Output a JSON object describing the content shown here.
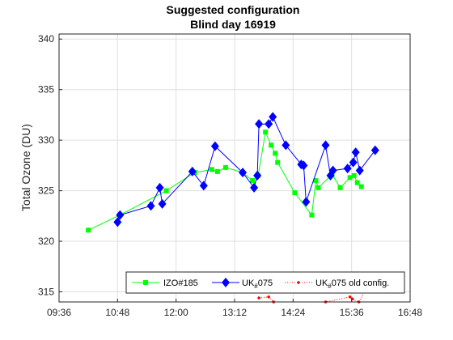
{
  "chart_data": {
    "type": "line",
    "title": "Suggested configuration",
    "subtitle": "Blind day 16919",
    "xlabel": "",
    "ylabel": "Total Ozone (DU)",
    "x_ticks": [
      "09:36",
      "10:48",
      "12:00",
      "13:12",
      "14:24",
      "15:36",
      "16:48"
    ],
    "y_ticks": [
      "315",
      "320",
      "325",
      "330",
      "335",
      "340"
    ],
    "xlim": [
      "09:36",
      "16:48"
    ],
    "ylim": [
      314,
      340.5
    ],
    "grid": true,
    "legend_position": "bottom-right",
    "legend": {
      "izo": "IZO#185",
      "uk_prefix": "UK",
      "uk_sub": "#",
      "uk_suffix": "075",
      "uk_old_suffix": "075 old config."
    },
    "series": [
      {
        "name": "IZO#185",
        "color": "#00ff00",
        "marker": "square",
        "line": "solid",
        "points": [
          [
            "10:12",
            321.1
          ],
          [
            "10:51",
            322.6
          ],
          [
            "11:48",
            325.0
          ],
          [
            "12:23",
            326.8
          ],
          [
            "12:44",
            327.1
          ],
          [
            "12:51",
            326.9
          ],
          [
            "13:01",
            327.3
          ],
          [
            "13:22",
            326.8
          ],
          [
            "13:34",
            326.0
          ],
          [
            "13:41",
            326.5
          ],
          [
            "13:50",
            330.8
          ],
          [
            "13:57",
            329.5
          ],
          [
            "14:02",
            328.7
          ],
          [
            "14:05",
            327.8
          ],
          [
            "14:26",
            324.8
          ],
          [
            "14:47",
            322.6
          ],
          [
            "14:52",
            326.0
          ],
          [
            "14:55",
            325.3
          ],
          [
            "15:12",
            326.6
          ],
          [
            "15:22",
            325.3
          ],
          [
            "15:34",
            326.3
          ],
          [
            "15:39",
            326.5
          ],
          [
            "15:43",
            325.8
          ],
          [
            "15:48",
            325.4
          ]
        ]
      },
      {
        "name": "UK#075",
        "color": "#0000ff",
        "marker": "diamond",
        "line": "solid",
        "points": [
          [
            "10:48",
            321.9
          ],
          [
            "10:51",
            322.6
          ],
          [
            "11:29",
            323.5
          ],
          [
            "11:40",
            325.3
          ],
          [
            "11:43",
            323.7
          ],
          [
            "12:20",
            326.9
          ],
          [
            "12:34",
            325.5
          ],
          [
            "12:48",
            329.4
          ],
          [
            "13:22",
            326.8
          ],
          [
            "13:36",
            325.3
          ],
          [
            "13:40",
            326.5
          ],
          [
            "13:42",
            331.6
          ],
          [
            "13:54",
            331.6
          ],
          [
            "13:59",
            332.3
          ],
          [
            "14:15",
            329.5
          ],
          [
            "14:34",
            327.6
          ],
          [
            "14:37",
            327.5
          ],
          [
            "14:40",
            323.9
          ],
          [
            "15:04",
            329.5
          ],
          [
            "15:10",
            326.5
          ],
          [
            "15:13",
            327.0
          ],
          [
            "15:31",
            327.2
          ],
          [
            "15:38",
            327.8
          ],
          [
            "15:41",
            328.8
          ],
          [
            "15:46",
            327.0
          ],
          [
            "16:05",
            329.0
          ]
        ]
      },
      {
        "name": "UK#075 old config.",
        "color": "#ff0000",
        "marker": "dot",
        "line": "dotted",
        "points": [
          [
            "13:42",
            314.4
          ],
          [
            "13:54",
            314.5
          ],
          [
            "14:00",
            314.0
          ],
          [
            "15:04",
            314.0
          ],
          [
            "15:34",
            314.5
          ],
          [
            "15:37",
            314.3
          ],
          [
            "15:45",
            314.0
          ],
          [
            "16:05",
            316.8
          ]
        ]
      }
    ]
  }
}
